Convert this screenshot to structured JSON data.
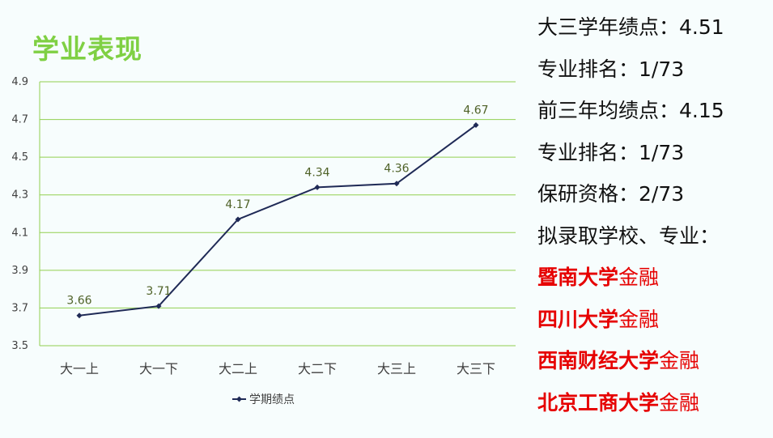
{
  "title": "学业表现",
  "info": {
    "lines": [
      "大三学年绩点：4.51",
      "专业排名：1/73",
      "前三年均绩点：4.15",
      "专业排名：1/73",
      "保研资格：2/73",
      "拟录取学校、专业："
    ],
    "offers": [
      {
        "school": "暨南大学",
        "major": "金融"
      },
      {
        "school": "四川大学",
        "major": "金融"
      },
      {
        "school": "西南财经大学",
        "major": "金融"
      },
      {
        "school": "北京工商大学",
        "major": "金融"
      }
    ]
  },
  "colors": {
    "title": "#7fd043",
    "gridline": "#92d050",
    "series": "#1f2a56",
    "label": "#4f6228",
    "offer": "#e60000"
  },
  "chart_data": {
    "type": "line",
    "categories": [
      "大一上",
      "大一下",
      "大二上",
      "大二下",
      "大三上",
      "大三下"
    ],
    "series": [
      {
        "name": "学期绩点",
        "values": [
          3.66,
          3.71,
          4.17,
          4.34,
          4.36,
          4.67
        ]
      }
    ],
    "data_labels": [
      "3.66",
      "3.71",
      "4.17",
      "4.34",
      "4.36",
      "4.67"
    ],
    "ylim": [
      3.5,
      4.9
    ],
    "yticks": [
      3.5,
      3.7,
      3.9,
      4.1,
      4.3,
      4.5,
      4.7,
      4.9
    ],
    "ytick_labels": [
      "3.5",
      "3.7",
      "3.9",
      "4.1",
      "4.3",
      "4.5",
      "4.7",
      "4.9"
    ],
    "grid": true,
    "legend": "bottom",
    "xlabel": "",
    "ylabel": ""
  }
}
